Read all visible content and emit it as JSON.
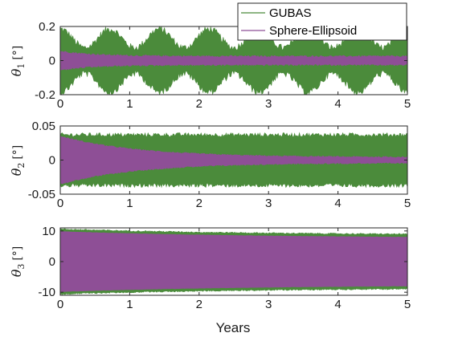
{
  "chart_data": {
    "type": "line",
    "x_label": "Years",
    "legend": {
      "placement": "top-right",
      "entries": [
        "GUBAS",
        "Sphere-Ellipsoid"
      ]
    },
    "colors": {
      "GUBAS": "#4b8b3b",
      "Sphere-Ellipsoid": "#8e4f96"
    },
    "panels": [
      {
        "y_label": {
          "symbol": "θ",
          "subscript": "1",
          "unit": "[°]"
        },
        "xlim": [
          0,
          5
        ],
        "ylim": [
          -0.2,
          0.2
        ],
        "x_ticks": [
          "0",
          "1",
          "2",
          "3",
          "4",
          "5"
        ],
        "y_ticks": [
          "0.2",
          "0",
          "-0.2"
        ],
        "y_tick_values": [
          0.2,
          0,
          -0.2
        ],
        "series": [
          {
            "name": "GUBAS",
            "center": 0.0,
            "envelope_mean": 0.13,
            "envelope_mod": 0.055,
            "cycles": 7.0,
            "phase": 0.0,
            "noise": 0.02
          },
          {
            "name": "Sphere-Ellipsoid",
            "center": 0.0,
            "envelope_start": 0.055,
            "envelope_end": 0.025,
            "decay_rate": 2.0,
            "noise": 0.005
          }
        ]
      },
      {
        "y_label": {
          "symbol": "θ",
          "subscript": "2",
          "unit": "[°]"
        },
        "xlim": [
          0,
          5
        ],
        "ylim": [
          -0.05,
          0.05
        ],
        "x_ticks": [
          "0",
          "1",
          "2",
          "3",
          "4",
          "5"
        ],
        "y_ticks": [
          "0.05",
          "0",
          "-0.05"
        ],
        "y_tick_values": [
          0.05,
          0,
          -0.05
        ],
        "series": [
          {
            "name": "GUBAS",
            "center": 0.0,
            "envelope_mean": 0.037,
            "envelope_mod": 0.0,
            "cycles": 0,
            "phase": 0.0,
            "noise": 0.003
          },
          {
            "name": "Sphere-Ellipsoid",
            "center": 0.0,
            "envelope_start": 0.035,
            "envelope_end": 0.004,
            "decay_rate": 0.9,
            "noise": 0.001
          }
        ]
      },
      {
        "y_label": {
          "symbol": "θ",
          "subscript": "3",
          "unit": "[°]"
        },
        "xlim": [
          0,
          5
        ],
        "ylim": [
          -11,
          11
        ],
        "x_ticks": [
          "0",
          "1",
          "2",
          "3",
          "4",
          "5"
        ],
        "y_ticks": [
          "10",
          "0",
          "-10"
        ],
        "y_tick_values": [
          10,
          0,
          -10
        ],
        "series": [
          {
            "name": "GUBAS",
            "center": 0.0,
            "envelope_start": 10.6,
            "envelope_end": 8.6,
            "decay_rate": 0.35,
            "noise": 0.2
          },
          {
            "name": "Sphere-Ellipsoid",
            "center": 0.0,
            "envelope_start": 9.8,
            "envelope_end": 7.6,
            "decay_rate": 0.35,
            "noise": 0.05
          }
        ]
      }
    ]
  }
}
